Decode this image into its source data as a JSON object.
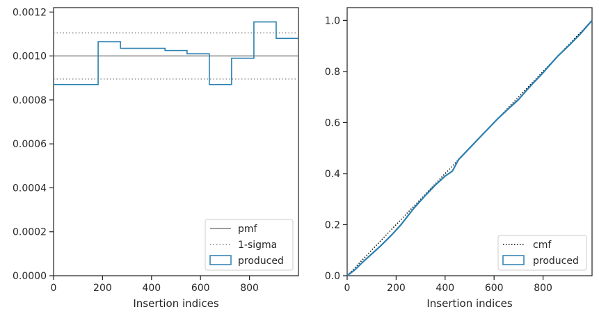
{
  "colors": {
    "produced": "#2a7fb0",
    "pmf": "#7f7f7f",
    "sigma": "#7f7f7f",
    "cmf": "#000000",
    "axes": "#262626"
  },
  "chart_data": [
    {
      "type": "step",
      "xlabel": "Insertion indices",
      "ylabel": "",
      "xlim": [
        0,
        1000
      ],
      "ylim": [
        0,
        0.00122
      ],
      "xticks": [
        0,
        200,
        400,
        600,
        800
      ],
      "xtick_labels": [
        "0",
        "200",
        "400",
        "600",
        "800"
      ],
      "yticks": [
        0,
        0.0002,
        0.0004,
        0.0006,
        0.0008,
        0.001,
        0.0012
      ],
      "ytick_labels": [
        "0.0000",
        "0.0002",
        "0.0004",
        "0.0006",
        "0.0008",
        "0.0010",
        "0.0012"
      ],
      "reference_lines": [
        {
          "name": "pmf",
          "y": 0.001,
          "style": "solid"
        },
        {
          "name": "1-sigma",
          "y": 0.001105,
          "style": "dotted"
        },
        {
          "name": "1-sigma",
          "y": 0.000895,
          "style": "dotted"
        }
      ],
      "series": [
        {
          "name": "produced",
          "bin_edges": [
            0,
            182,
            273,
            455,
            545,
            636,
            727,
            818,
            909,
            1000
          ],
          "values": [
            0.00087,
            0.001065,
            0.001035,
            0.001025,
            0.00101,
            0.00087,
            0.00099,
            0.001155,
            0.00108
          ]
        }
      ],
      "legend": {
        "position": "lower-right",
        "entries": [
          {
            "label": "pmf",
            "kind": "solid-line"
          },
          {
            "label": "1-sigma",
            "kind": "dotted-line"
          },
          {
            "label": "produced",
            "kind": "box"
          }
        ]
      }
    },
    {
      "type": "line",
      "xlabel": "Insertion indices",
      "ylabel": "",
      "xlim": [
        0,
        1000
      ],
      "ylim": [
        0,
        1.05
      ],
      "xticks": [
        0,
        200,
        400,
        600,
        800
      ],
      "xtick_labels": [
        "0",
        "200",
        "400",
        "600",
        "800"
      ],
      "yticks": [
        0,
        0.2,
        0.4,
        0.6,
        0.8,
        1.0
      ],
      "ytick_labels": [
        "0.0",
        "0.2",
        "0.4",
        "0.6",
        "0.8",
        "1.0"
      ],
      "series": [
        {
          "name": "cmf",
          "style": "dotted",
          "x": [
            0,
            1000
          ],
          "y": [
            0,
            1.0
          ]
        },
        {
          "name": "produced",
          "style": "solid",
          "x": [
            0,
            30,
            60,
            100,
            140,
            182,
            220,
            273,
            320,
            360,
            400,
            430,
            455,
            500,
            545,
            590,
            615,
            660,
            700,
            727,
            760,
            800,
            818,
            860,
            909,
            950,
            1000
          ],
          "y": [
            0,
            0.022,
            0.05,
            0.085,
            0.12,
            0.16,
            0.2,
            0.265,
            0.315,
            0.355,
            0.39,
            0.41,
            0.455,
            0.5,
            0.545,
            0.59,
            0.615,
            0.655,
            0.69,
            0.72,
            0.755,
            0.795,
            0.815,
            0.86,
            0.905,
            0.945,
            1.0
          ]
        }
      ],
      "legend": {
        "position": "lower-right",
        "entries": [
          {
            "label": "cmf",
            "kind": "dotted-line"
          },
          {
            "label": "produced",
            "kind": "box"
          }
        ]
      }
    }
  ]
}
